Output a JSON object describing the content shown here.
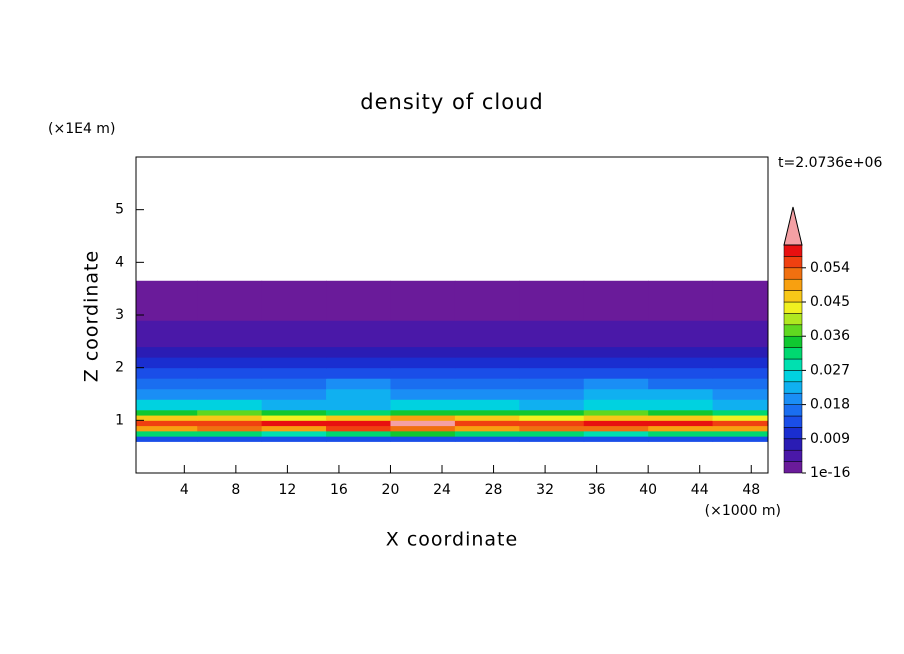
{
  "chart_data": {
    "type": "contour",
    "title": "density of cloud",
    "x_label": "X coordinate",
    "y_label": "Z coordinate",
    "x_unit": "(×1000 m)",
    "y_unit": "(×1E4 m)",
    "time_label": "t=2.0736e+06",
    "xlim": [
      0.25,
      49.3
    ],
    "xticks": [
      4,
      8,
      12,
      16,
      20,
      24,
      28,
      32,
      36,
      40,
      44,
      48
    ],
    "ylim": [
      0,
      6
    ],
    "yticks": [
      1,
      2,
      3,
      4,
      5
    ],
    "x_edges": [
      0.25,
      5,
      10,
      15,
      20,
      25,
      30,
      35,
      40,
      45,
      49.3
    ],
    "y_edges": [
      0.6,
      0.7,
      0.8,
      0.9,
      1.0,
      1.1,
      1.2,
      1.4,
      1.6,
      1.8,
      2.0,
      2.2,
      2.4,
      2.9,
      3.65
    ],
    "values": [
      [
        0.012,
        0.013,
        0.012,
        0.012,
        0.013,
        0.012,
        0.012,
        0.013,
        0.012,
        0.012
      ],
      [
        0.03,
        0.032,
        0.029,
        0.031,
        0.033,
        0.03,
        0.031,
        0.029,
        0.03,
        0.031
      ],
      [
        0.05,
        0.052,
        0.05,
        0.055,
        0.053,
        0.05,
        0.051,
        0.052,
        0.05,
        0.049
      ],
      [
        0.055,
        0.056,
        0.058,
        0.057,
        0.061,
        0.056,
        0.055,
        0.057,
        0.058,
        0.055
      ],
      [
        0.045,
        0.047,
        0.044,
        0.046,
        0.048,
        0.045,
        0.044,
        0.046,
        0.045,
        0.043
      ],
      [
        0.034,
        0.036,
        0.033,
        0.032,
        0.035,
        0.033,
        0.034,
        0.036,
        0.034,
        0.032
      ],
      [
        0.024,
        0.026,
        0.022,
        0.023,
        0.025,
        0.024,
        0.022,
        0.026,
        0.025,
        0.023
      ],
      [
        0.019,
        0.02,
        0.018,
        0.021,
        0.02,
        0.019,
        0.02,
        0.022,
        0.021,
        0.019
      ],
      [
        0.016,
        0.017,
        0.015,
        0.018,
        0.016,
        0.017,
        0.016,
        0.018,
        0.017,
        0.016
      ],
      [
        0.012,
        0.013,
        0.012,
        0.014,
        0.013,
        0.012,
        0.013,
        0.014,
        0.013,
        0.012
      ],
      [
        0.009,
        0.01,
        0.009,
        0.01,
        0.011,
        0.009,
        0.01,
        0.01,
        0.009,
        0.009
      ],
      [
        0.007,
        0.007,
        0.006,
        0.007,
        0.008,
        0.007,
        0.007,
        0.007,
        0.006,
        0.007
      ],
      [
        0.004,
        0.004,
        0.004,
        0.005,
        0.004,
        0.004,
        0.004,
        0.005,
        0.004,
        0.004
      ],
      [
        0.001,
        0.001,
        0.001,
        0.001,
        0.001,
        0.001,
        0.001,
        0.001,
        0.001,
        0.001
      ]
    ],
    "levels": [
      1e-16,
      0.003,
      0.006,
      0.009,
      0.012,
      0.015,
      0.018,
      0.021,
      0.024,
      0.027,
      0.03,
      0.033,
      0.036,
      0.039,
      0.042,
      0.045,
      0.048,
      0.051,
      0.054,
      0.057,
      0.06
    ],
    "colors": [
      "#6a1b9a",
      "#4a18a8",
      "#2a1cb4",
      "#1a2ed0",
      "#1a4ee8",
      "#1a6ef0",
      "#1a8ef5",
      "#10b0f0",
      "#00d2e0",
      "#00e0b0",
      "#00d870",
      "#10c830",
      "#60d820",
      "#b0e820",
      "#f0f020",
      "#f8c818",
      "#f8a010",
      "#f07010",
      "#f04010",
      "#e81010"
    ],
    "extend_color": "#f4a0a4",
    "colorbar_ticks": [
      1e-16,
      0.009,
      0.018,
      0.027,
      0.036,
      0.045,
      0.054
    ]
  }
}
